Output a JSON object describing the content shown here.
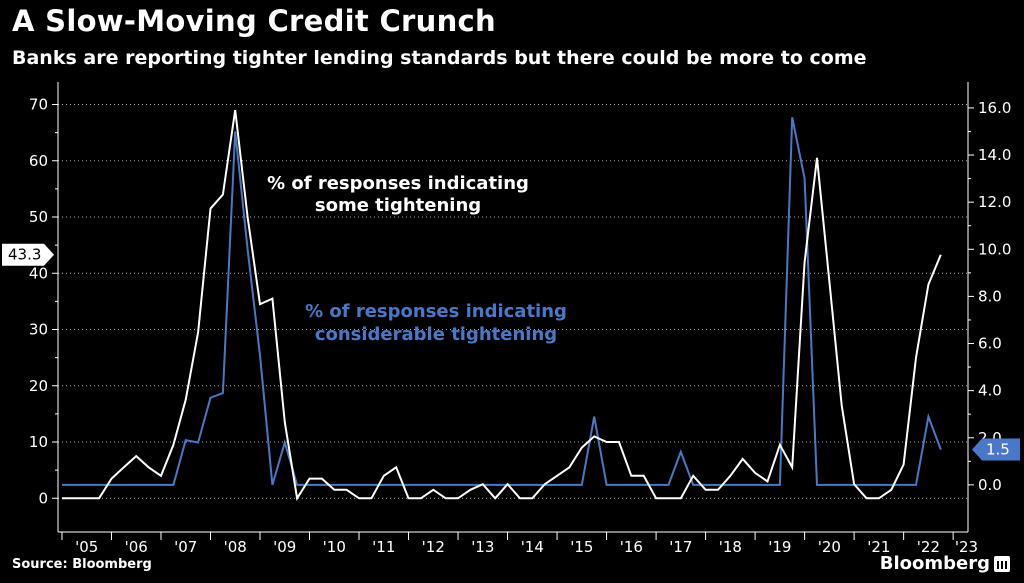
{
  "header": {
    "title": "A Slow-Moving Credit Crunch",
    "subtitle": "Banks are reporting tighter lending standards but there could be more to come"
  },
  "footer": {
    "source": "Source: Bloomberg",
    "brand": "Bloomberg"
  },
  "colors": {
    "background": "#000000",
    "some_tightening": "#ffffff",
    "considerable_tightening": "#4a78c8",
    "grid": "#b0b0b0"
  },
  "chart_data": {
    "type": "line",
    "title": "A Slow-Moving Credit Crunch",
    "subtitle": "Banks are reporting tighter lending standards but there could be more to come",
    "x_tick_labels": [
      "'05",
      "'06",
      "'07",
      "'08",
      "'09",
      "'10",
      "'11",
      "'12",
      "'13",
      "'14",
      "'15",
      "'16",
      "'17",
      "'18",
      "'19",
      "'20",
      "'21",
      "'22",
      "'23"
    ],
    "x_start_year": 2005,
    "x_range": [
      2004.92,
      2023.3
    ],
    "y_left": {
      "range": [
        -6,
        74
      ],
      "ticks": [
        0,
        10,
        20,
        30,
        40,
        50,
        60,
        70
      ],
      "labels": [
        "0",
        "10",
        "20",
        "30",
        "40",
        "50",
        "60",
        "70"
      ]
    },
    "y_right": {
      "range": [
        -2,
        17.1
      ],
      "ticks": [
        0,
        2,
        4,
        6,
        8,
        10,
        12,
        14,
        16
      ],
      "labels": [
        "0.0",
        "2.0",
        "4.0",
        "6.0",
        "8.0",
        "10.0",
        "12.0",
        "14.0",
        "16.0"
      ]
    },
    "grid": "horizontal dashed",
    "series": [
      {
        "name": "% of responses indicating some tightening",
        "label_lines": [
          "% of responses indicating",
          "some tightening"
        ],
        "axis": "left",
        "end_value": 43.3,
        "end_label": "43.3",
        "points": [
          [
            2005.0,
            0
          ],
          [
            2005.25,
            0
          ],
          [
            2005.5,
            0
          ],
          [
            2005.75,
            0
          ],
          [
            2006.0,
            3.5
          ],
          [
            2006.25,
            5.5
          ],
          [
            2006.5,
            7.5
          ],
          [
            2006.75,
            5.5
          ],
          [
            2007.0,
            4
          ],
          [
            2007.25,
            9.5
          ],
          [
            2007.5,
            17.5
          ],
          [
            2007.75,
            29.5
          ],
          [
            2008.0,
            51.5
          ],
          [
            2008.25,
            54
          ],
          [
            2008.5,
            69
          ],
          [
            2008.75,
            50
          ],
          [
            2009.0,
            34.5
          ],
          [
            2009.25,
            35.5
          ],
          [
            2009.5,
            13.5
          ],
          [
            2009.75,
            0
          ],
          [
            2010.0,
            3.5
          ],
          [
            2010.25,
            3.5
          ],
          [
            2010.5,
            1.5
          ],
          [
            2010.75,
            1.5
          ],
          [
            2011.0,
            0
          ],
          [
            2011.25,
            0
          ],
          [
            2011.5,
            4
          ],
          [
            2011.75,
            5.5
          ],
          [
            2012.0,
            0
          ],
          [
            2012.25,
            0
          ],
          [
            2012.5,
            1.5
          ],
          [
            2012.75,
            0
          ],
          [
            2013.0,
            0
          ],
          [
            2013.25,
            1.5
          ],
          [
            2013.5,
            2.5
          ],
          [
            2013.75,
            0
          ],
          [
            2014.0,
            2.5
          ],
          [
            2014.25,
            0
          ],
          [
            2014.5,
            0
          ],
          [
            2014.75,
            2.5
          ],
          [
            2015.0,
            4
          ],
          [
            2015.25,
            5.5
          ],
          [
            2015.5,
            9
          ],
          [
            2015.75,
            11
          ],
          [
            2016.0,
            10
          ],
          [
            2016.25,
            10
          ],
          [
            2016.5,
            4
          ],
          [
            2016.75,
            4
          ],
          [
            2017.0,
            0
          ],
          [
            2017.25,
            0
          ],
          [
            2017.5,
            0
          ],
          [
            2017.75,
            4
          ],
          [
            2018.0,
            1.5
          ],
          [
            2018.25,
            1.5
          ],
          [
            2018.5,
            4
          ],
          [
            2018.75,
            7
          ],
          [
            2019.0,
            4.5
          ],
          [
            2019.25,
            3
          ],
          [
            2019.5,
            9.5
          ],
          [
            2019.75,
            5.5
          ],
          [
            2020.0,
            42
          ],
          [
            2020.25,
            60.5
          ],
          [
            2020.5,
            38.5
          ],
          [
            2020.75,
            16.5
          ],
          [
            2021.0,
            2.5
          ],
          [
            2021.25,
            0
          ],
          [
            2021.5,
            0
          ],
          [
            2021.75,
            1.5
          ],
          [
            2022.0,
            6
          ],
          [
            2022.25,
            25
          ],
          [
            2022.5,
            38
          ],
          [
            2022.75,
            43.3
          ]
        ]
      },
      {
        "name": "% of responses indicating considerable tightening",
        "label_lines": [
          "% of responses indicating",
          "considerable tightening"
        ],
        "axis": "right",
        "end_value": 1.5,
        "end_label": "1.5",
        "points": [
          [
            2005.0,
            0
          ],
          [
            2005.25,
            0
          ],
          [
            2005.5,
            0
          ],
          [
            2005.75,
            0
          ],
          [
            2006.0,
            0
          ],
          [
            2006.25,
            0
          ],
          [
            2006.5,
            0
          ],
          [
            2006.75,
            0
          ],
          [
            2007.0,
            0
          ],
          [
            2007.25,
            0
          ],
          [
            2007.5,
            1.9
          ],
          [
            2007.75,
            1.8
          ],
          [
            2008.0,
            3.7
          ],
          [
            2008.25,
            3.9
          ],
          [
            2008.5,
            15.0
          ],
          [
            2008.75,
            10
          ],
          [
            2009.0,
            5.5
          ],
          [
            2009.25,
            0
          ],
          [
            2009.5,
            1.8
          ],
          [
            2009.75,
            0
          ],
          [
            2010.0,
            0
          ],
          [
            2010.25,
            0
          ],
          [
            2010.5,
            0
          ],
          [
            2010.75,
            0
          ],
          [
            2011.0,
            0
          ],
          [
            2011.25,
            0
          ],
          [
            2011.5,
            0
          ],
          [
            2011.75,
            0
          ],
          [
            2012.0,
            0
          ],
          [
            2012.25,
            0
          ],
          [
            2012.5,
            0
          ],
          [
            2012.75,
            0
          ],
          [
            2013.0,
            0
          ],
          [
            2013.25,
            0
          ],
          [
            2013.5,
            0
          ],
          [
            2013.75,
            0
          ],
          [
            2014.0,
            0
          ],
          [
            2014.25,
            0
          ],
          [
            2014.5,
            0
          ],
          [
            2014.75,
            0
          ],
          [
            2015.0,
            0
          ],
          [
            2015.25,
            0
          ],
          [
            2015.5,
            0
          ],
          [
            2015.75,
            2.9
          ],
          [
            2016.0,
            0
          ],
          [
            2016.25,
            0
          ],
          [
            2016.5,
            0
          ],
          [
            2016.75,
            0
          ],
          [
            2017.0,
            0
          ],
          [
            2017.25,
            0
          ],
          [
            2017.5,
            1.4
          ],
          [
            2017.75,
            0
          ],
          [
            2018.0,
            0
          ],
          [
            2018.25,
            0
          ],
          [
            2018.5,
            0
          ],
          [
            2018.75,
            0
          ],
          [
            2019.0,
            0
          ],
          [
            2019.25,
            0
          ],
          [
            2019.5,
            0
          ],
          [
            2019.75,
            15.6
          ],
          [
            2020.0,
            13.0
          ],
          [
            2020.25,
            0
          ],
          [
            2020.5,
            0
          ],
          [
            2020.75,
            0
          ],
          [
            2021.0,
            0
          ],
          [
            2021.25,
            0
          ],
          [
            2021.5,
            0
          ],
          [
            2021.75,
            0
          ],
          [
            2022.0,
            0
          ],
          [
            2022.25,
            0
          ],
          [
            2022.5,
            2.9
          ],
          [
            2022.75,
            1.5
          ]
        ]
      }
    ]
  }
}
